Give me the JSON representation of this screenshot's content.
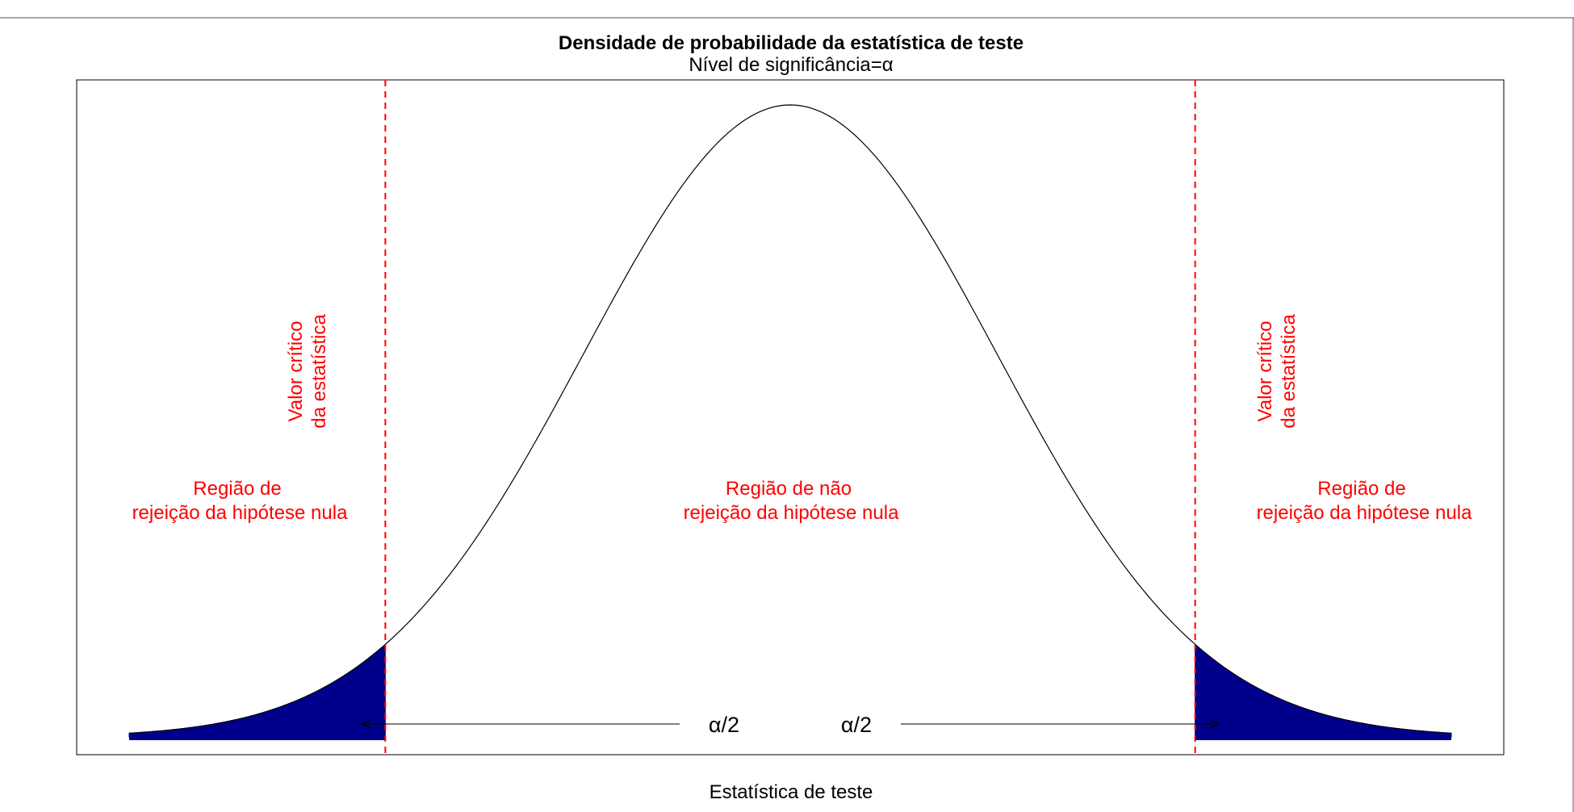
{
  "chart_data": {
    "type": "area",
    "distribution": "normal",
    "title": "Densidade de probabilidade da estatística de teste",
    "subtitle": "Nível de significância=α",
    "xlabel": "Estatística de teste",
    "ylabel": "",
    "xlim": [
      -3.5,
      3.5
    ],
    "ylim": [
      0,
      0.42
    ],
    "critical_values": [
      -1.96,
      1.96
    ],
    "x_range_plotted": [
      -3.2,
      3.2
    ],
    "shaded_tails": [
      {
        "from": -3.2,
        "to": -1.96,
        "label": "α/2"
      },
      {
        "from": 1.96,
        "to": 3.2,
        "label": "α/2"
      }
    ],
    "annotations": {
      "critical_left": [
        "Valor crítico",
        "da estatística"
      ],
      "critical_right": [
        "Valor crítico",
        "da estatística"
      ],
      "reject_left": [
        "Região de",
        "rejeição da hipótese nula"
      ],
      "nonreject": [
        "Região de não",
        "rejeição da hipótese nula"
      ],
      "reject_right": [
        "Região de",
        "rejeição da hipótese nula"
      ],
      "alpha_left": "α/2",
      "alpha_right": "α/2"
    },
    "grid": false,
    "axes_shown": false,
    "colors": {
      "tail_fill": "#00008b",
      "critical_line": "#ff0000",
      "annotation_text": "#ff0000",
      "curve": "#000000",
      "arrow": "#000000"
    }
  }
}
